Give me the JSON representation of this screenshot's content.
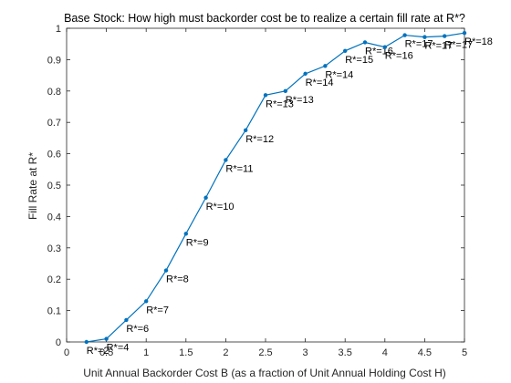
{
  "chart_data": {
    "type": "line",
    "title": "Base Stock:  How high must backorder cost be to realize a certain fill rate at R*?",
    "xlabel": "Unit Annual Backorder Cost B (as a fraction of Unit Annual Holding Cost H)",
    "ylabel": "Fill Rate at R*",
    "xlim": [
      0,
      5
    ],
    "ylim": [
      0,
      1
    ],
    "xticks": [
      "0",
      "0.5",
      "1",
      "1.5",
      "2",
      "2.5",
      "3",
      "3.5",
      "4",
      "4.5",
      "5"
    ],
    "yticks": [
      "0",
      "0.1",
      "0.2",
      "0.3",
      "0.4",
      "0.5",
      "0.6",
      "0.7",
      "0.8",
      "0.9",
      "1"
    ],
    "grid": false,
    "color": "#0072BD",
    "x": [
      0.25,
      0.5,
      0.75,
      1.0,
      1.25,
      1.5,
      1.75,
      2.0,
      2.25,
      2.5,
      2.75,
      3.0,
      3.25,
      3.5,
      3.75,
      4.0,
      4.25,
      4.5,
      4.75,
      5.0
    ],
    "y": [
      0.0,
      0.01,
      0.07,
      0.13,
      0.228,
      0.345,
      0.46,
      0.58,
      0.675,
      0.787,
      0.8,
      0.855,
      0.88,
      0.928,
      0.955,
      0.94,
      0.978,
      0.972,
      0.975,
      0.985
    ],
    "point_labels": [
      "R*=2",
      "R*=4",
      "R*=6",
      "R*=7",
      "R*=8",
      "R*=9",
      "R*=10",
      "R*=11",
      "R*=12",
      "R*=13",
      "R*=13",
      "R*=14",
      "R*=14",
      "R*=15",
      "R*=16",
      "R*=16",
      "R*=17",
      "R*=17",
      "R*=17",
      "R*=18"
    ]
  }
}
